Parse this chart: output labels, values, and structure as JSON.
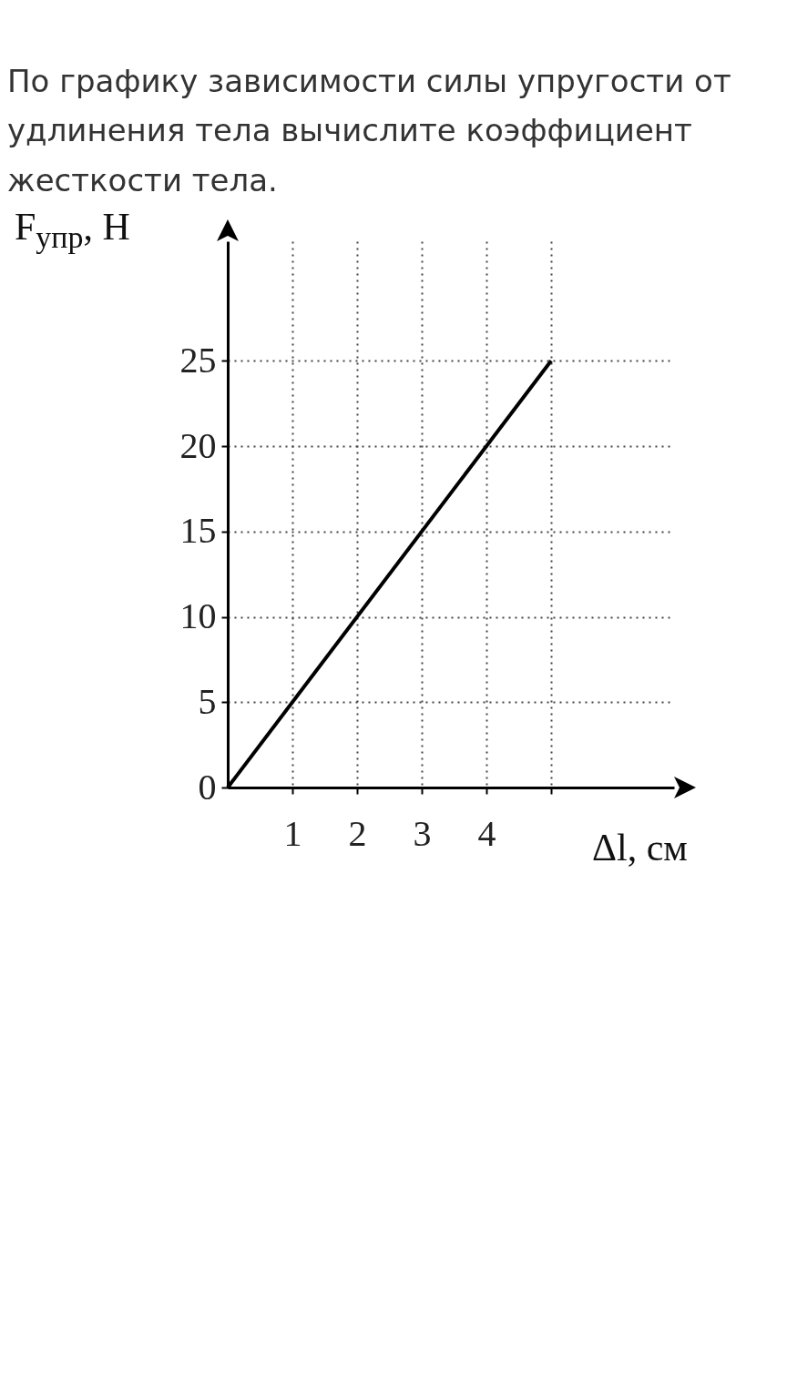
{
  "chart_data": {
    "type": "line",
    "title": "По графику зависимости силы упругости от удлинения тела вычислите коэффициент жесткости тела.",
    "xlabel": "Δl, см",
    "ylabel": "F$_{упр}$, Н",
    "x": [
      0,
      5
    ],
    "series": [
      {
        "color": "#000000",
        "values": [
          0,
          25
        ]
      }
    ],
    "xlim": [
      0,
      6.9
    ],
    "ylim": [
      0,
      32
    ],
    "xticks": [
      1,
      2,
      3,
      4,
      {
        "value": 5,
        "label": null
      }
    ],
    "yticks": [
      0,
      5,
      10,
      15,
      20,
      25
    ],
    "grid": true,
    "line_style": "solid",
    "marker": "none"
  }
}
